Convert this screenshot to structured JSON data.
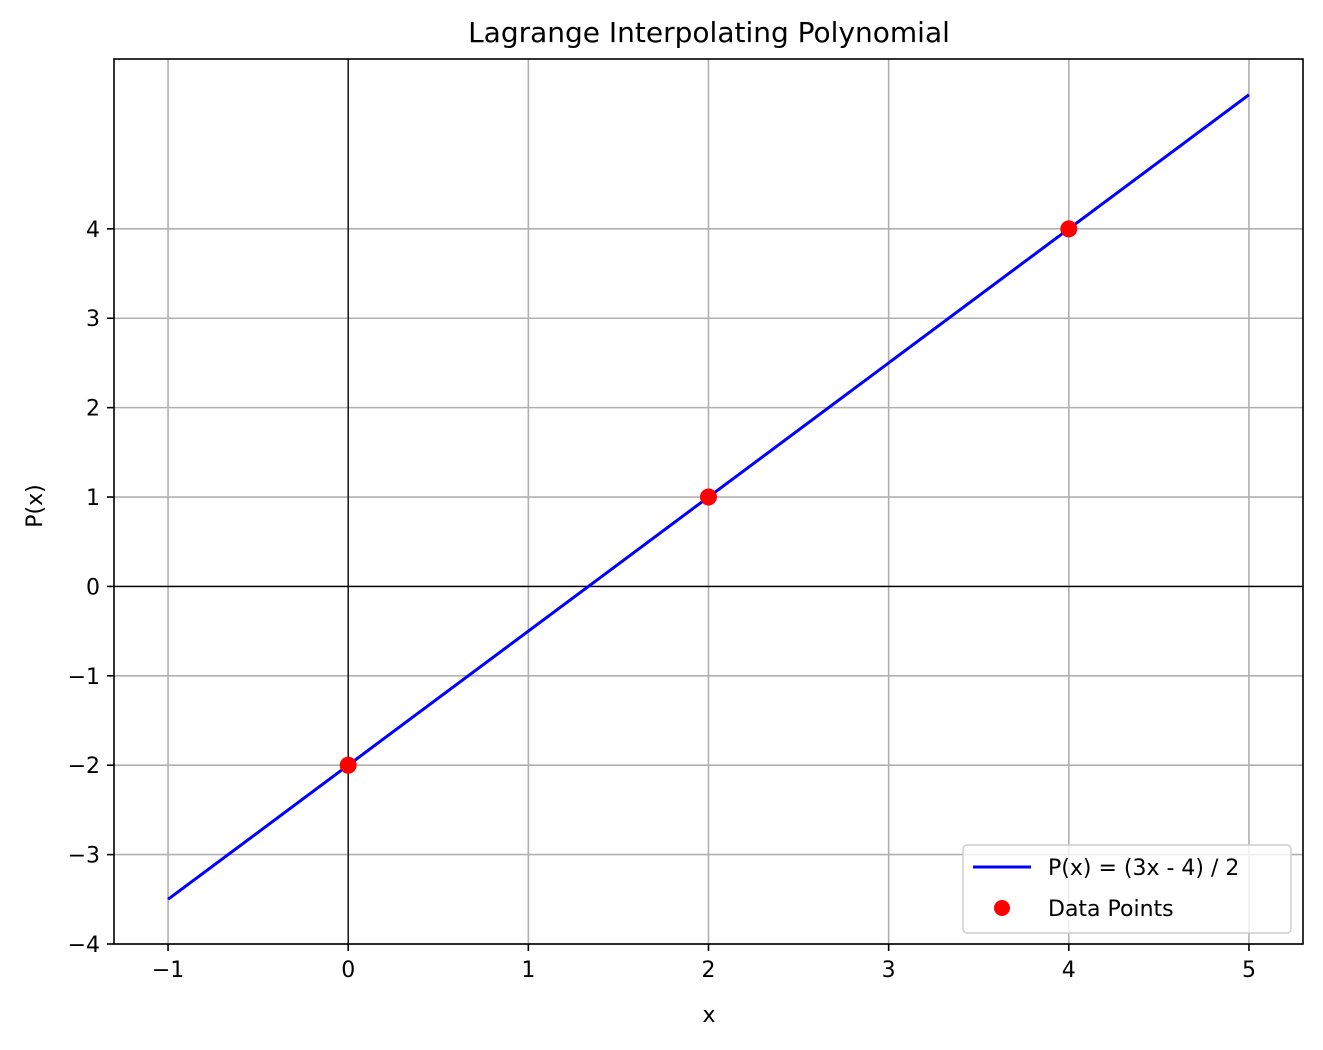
{
  "chart_data": {
    "type": "line",
    "title": "Lagrange Interpolating Polynomial",
    "xlabel": "x",
    "ylabel": "P(x)",
    "xlim": [
      -1.3,
      5.3
    ],
    "ylim": [
      -4,
      5.9
    ],
    "xticks": [
      -1,
      0,
      1,
      2,
      3,
      4,
      5
    ],
    "xtick_labels": [
      "−1",
      "0",
      "1",
      "2",
      "3",
      "4",
      "5"
    ],
    "yticks": [
      -4,
      -3,
      -2,
      -1,
      0,
      1,
      2,
      3,
      4
    ],
    "ytick_labels": [
      "−4",
      "−3",
      "−2",
      "−1",
      "0",
      "1",
      "2",
      "3",
      "4"
    ],
    "grid": true,
    "zero_axes_lines": true,
    "legend_position": "lower-right",
    "series": [
      {
        "name": "P(x) = (3x - 4) / 2",
        "kind": "line",
        "color": "#0000ff",
        "x": [
          -1,
          5
        ],
        "y": [
          -3.5,
          5.5
        ]
      },
      {
        "name": "Data Points",
        "kind": "scatter",
        "color": "#ff0000",
        "x": [
          0,
          2,
          4
        ],
        "y": [
          -2,
          1,
          4
        ]
      }
    ]
  }
}
